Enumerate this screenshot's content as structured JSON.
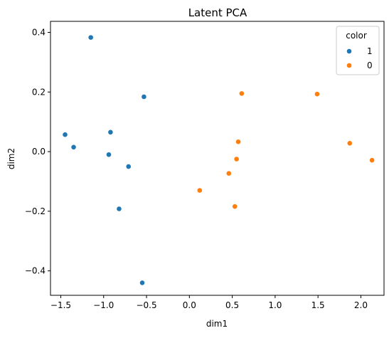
{
  "chart_data": {
    "type": "scatter",
    "title": "Latent PCA",
    "xlabel": "dim1",
    "ylabel": "dim2",
    "xlim": [
      -1.62,
      2.27
    ],
    "ylim": [
      -0.482,
      0.437
    ],
    "xticks": [
      -1.5,
      -1.0,
      -0.5,
      0.0,
      0.5,
      1.0,
      1.5,
      2.0
    ],
    "xtick_labels": [
      "−1.5",
      "−1.0",
      "−0.5",
      "0.0",
      "0.5",
      "1.0",
      "1.5",
      "2.0"
    ],
    "yticks": [
      0.4,
      0.2,
      0.0,
      -0.2,
      -0.4
    ],
    "ytick_labels": [
      "0.4",
      "0.2",
      "0.0",
      "−0.2",
      "−0.4"
    ],
    "grid": false,
    "legend": {
      "title": "color",
      "placement": "top-right",
      "entries": [
        {
          "label": "1",
          "color": "#1f77b4"
        },
        {
          "label": "0",
          "color": "#ff7f0e"
        }
      ]
    },
    "series": [
      {
        "name": "1",
        "color": "#1f77b4",
        "points": [
          [
            -1.15,
            0.383
          ],
          [
            -0.53,
            0.184
          ],
          [
            -0.92,
            0.065
          ],
          [
            -1.45,
            0.057
          ],
          [
            -1.35,
            0.015
          ],
          [
            -0.94,
            -0.01
          ],
          [
            -0.71,
            -0.05
          ],
          [
            -0.82,
            -0.192
          ],
          [
            -0.55,
            -0.44
          ]
        ]
      },
      {
        "name": "0",
        "color": "#ff7f0e",
        "points": [
          [
            0.61,
            0.195
          ],
          [
            1.49,
            0.193
          ],
          [
            0.57,
            0.033
          ],
          [
            1.87,
            0.028
          ],
          [
            0.55,
            -0.025
          ],
          [
            2.13,
            -0.029
          ],
          [
            0.46,
            -0.073
          ],
          [
            0.12,
            -0.13
          ],
          [
            0.53,
            -0.184
          ]
        ]
      }
    ]
  }
}
